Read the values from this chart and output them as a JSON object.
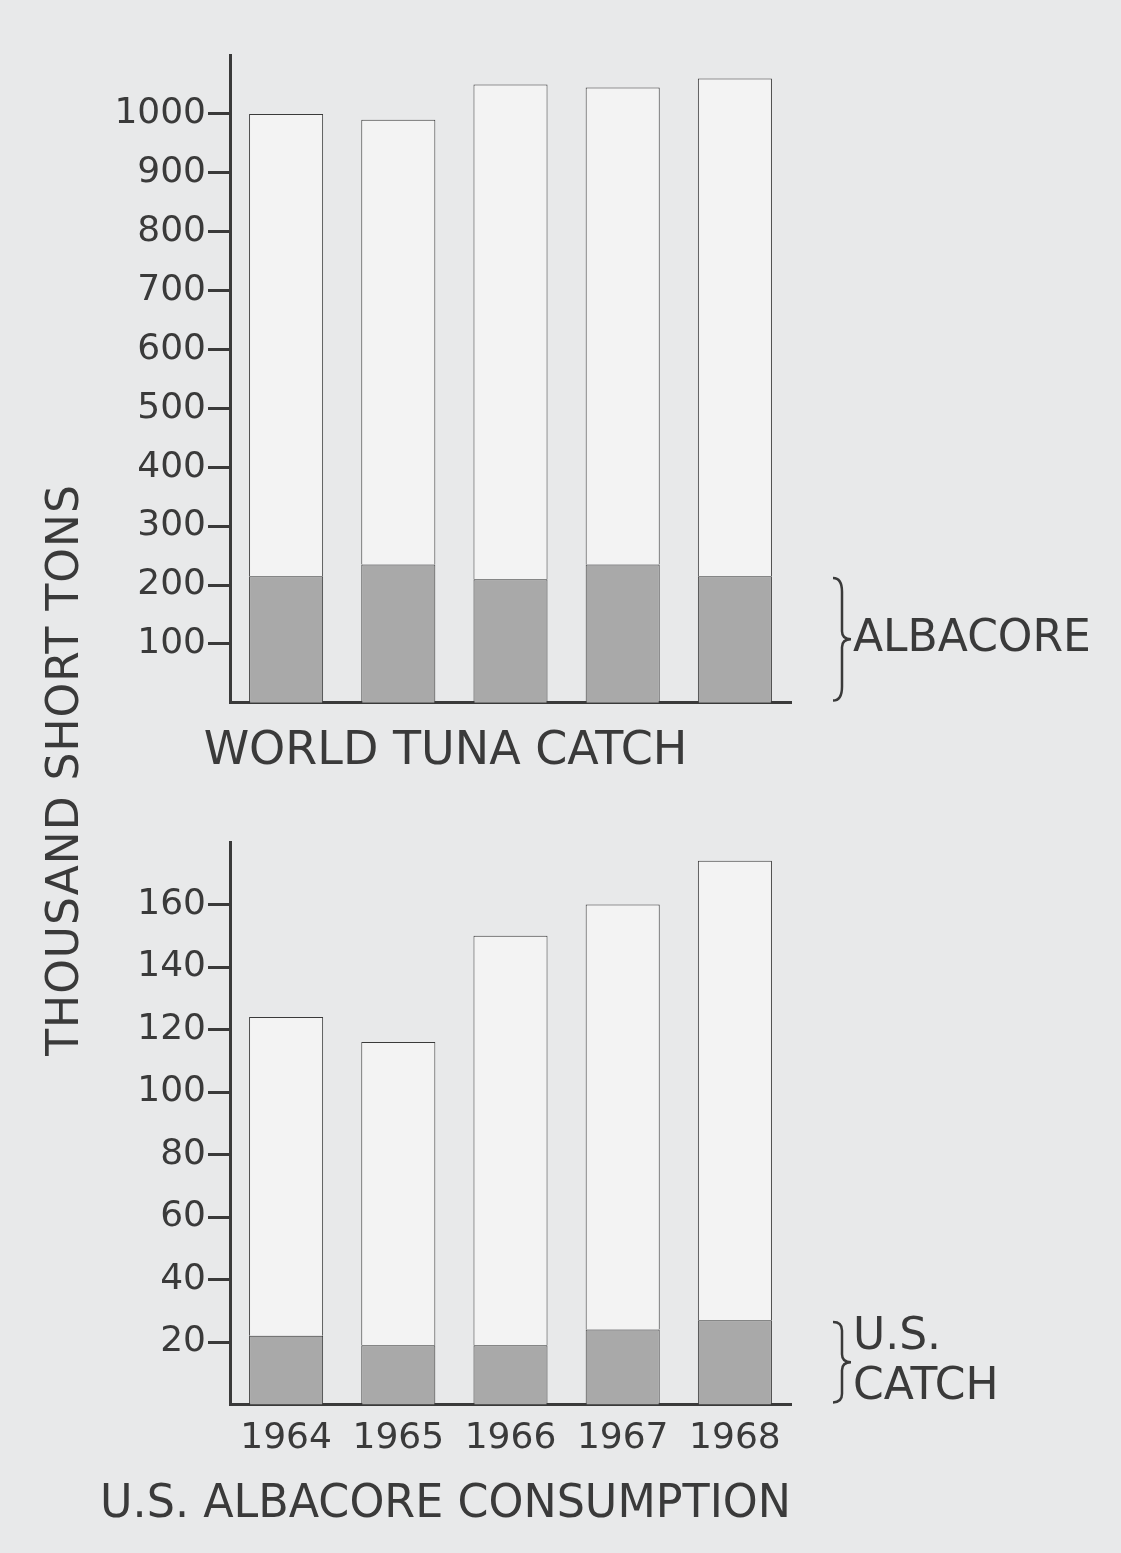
{
  "chart_data": [
    {
      "type": "bar",
      "title": "WORLD TUNA CATCH",
      "ylabel": "THOUSAND SHORT TONS",
      "categories": [
        "1964",
        "1965",
        "1966",
        "1967",
        "1968"
      ],
      "stacked": true,
      "tick_labels": "y",
      "ylim": [
        0,
        1100
      ],
      "yticks": [
        100,
        200,
        300,
        400,
        500,
        600,
        700,
        800,
        900,
        1000
      ],
      "series": [
        {
          "name": "ALBACORE",
          "color": "#a9a9a9",
          "values": [
            215,
            235,
            210,
            235,
            215
          ]
        },
        {
          "color": "#f3f3f3",
          "values": [
            785,
            755,
            840,
            810,
            845
          ]
        }
      ]
    },
    {
      "type": "bar",
      "title": "U.S. ALBACORE CONSUMPTION",
      "categories": [
        "1964",
        "1965",
        "1966",
        "1967",
        "1968"
      ],
      "stacked": true,
      "ylim": [
        0,
        180
      ],
      "yticks": [
        20,
        40,
        60,
        80,
        100,
        120,
        140,
        160
      ],
      "series": [
        {
          "name": "U.S. CATCH",
          "color": "#a9a9a9",
          "values": [
            22,
            19,
            19,
            24,
            27
          ]
        },
        {
          "color": "#f3f3f3",
          "values": [
            102,
            97,
            131,
            136,
            147
          ]
        }
      ]
    }
  ]
}
